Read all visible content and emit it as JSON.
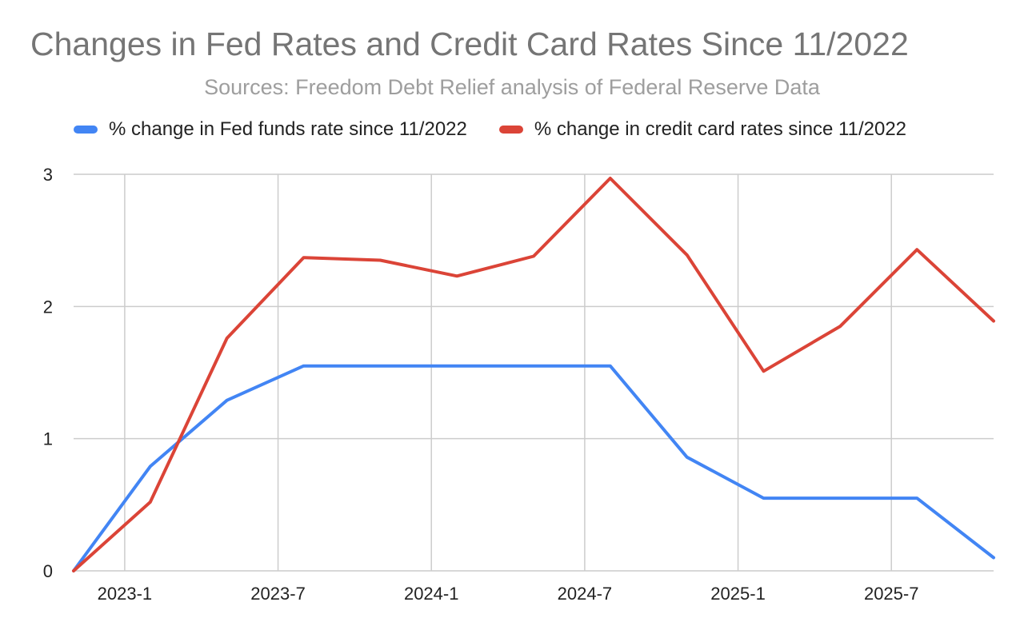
{
  "chart_data": {
    "type": "line",
    "title": "Changes in Fed Rates and Credit Card Rates Since 11/2022",
    "subtitle": "Sources: Freedom Debt Relief analysis of Federal Reserve Data",
    "x": [
      "2022-11",
      "2023-02",
      "2023-05",
      "2023-08",
      "2023-11",
      "2024-02",
      "2024-05",
      "2024-08",
      "2024-11",
      "2025-02",
      "2025-05",
      "2025-08",
      "2025-11"
    ],
    "x_ticks": [
      "2023-1",
      "2023-7",
      "2024-1",
      "2024-7",
      "2025-1",
      "2025-7"
    ],
    "y_ticks": [
      "0",
      "1",
      "2",
      "3"
    ],
    "ylim": [
      0,
      3
    ],
    "grid": true,
    "legend_position": "top",
    "series": [
      {
        "name": "% change in Fed funds rate since 11/2022",
        "color": "#4285f4",
        "values": [
          0.0,
          0.79,
          1.29,
          1.55,
          1.55,
          1.55,
          1.55,
          1.55,
          0.86,
          0.55,
          0.55,
          0.55,
          0.1
        ]
      },
      {
        "name": "% change in credit card rates since 11/2022",
        "color": "#db4437",
        "values": [
          0.0,
          0.52,
          1.76,
          2.37,
          2.35,
          2.23,
          2.38,
          2.97,
          2.39,
          1.51,
          1.85,
          2.43,
          1.89
        ]
      }
    ]
  }
}
